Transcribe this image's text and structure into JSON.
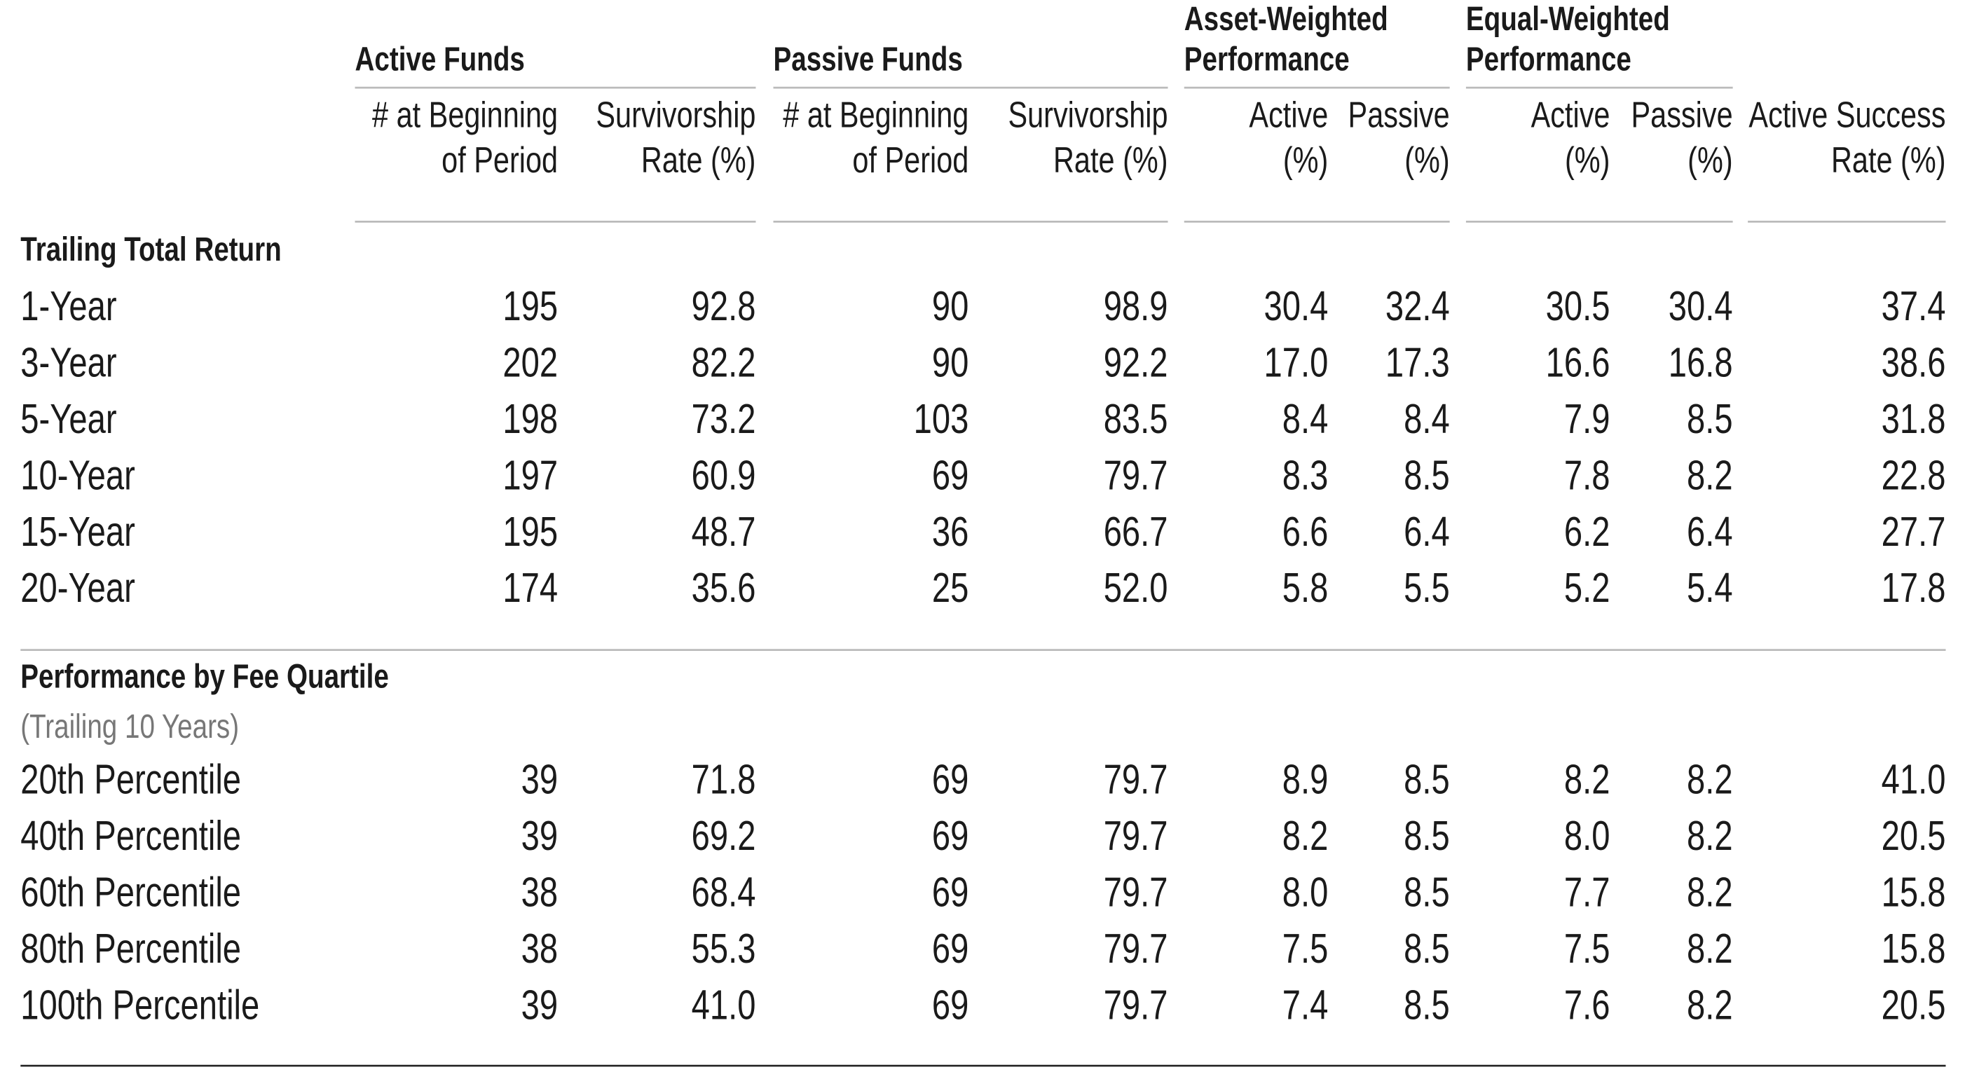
{
  "header": {
    "groups": [
      [
        "Active Funds"
      ],
      [
        "Passive Funds"
      ],
      [
        "Asset-Weighted",
        "Performance"
      ],
      [
        "Equal-Weighted",
        "Performance"
      ]
    ],
    "columns": [
      [
        "# at Beginning",
        "of Period"
      ],
      [
        "Survivorship",
        "Rate (%)"
      ],
      [
        "# at Beginning",
        "of Period"
      ],
      [
        "Survivorship",
        "Rate (%)"
      ],
      [
        "Active",
        "(%)"
      ],
      [
        "Passive",
        "(%)"
      ],
      [
        "Active",
        "(%)"
      ],
      [
        "Passive",
        "(%)"
      ],
      [
        "Active Success",
        "Rate (%)"
      ]
    ]
  },
  "sections": [
    {
      "title": "Trailing Total Return",
      "rows": [
        {
          "label": "1-Year",
          "cells": [
            "195",
            "92.8",
            "90",
            "98.9",
            "30.4",
            "32.4",
            "30.5",
            "30.4",
            "37.4"
          ]
        },
        {
          "label": "3-Year",
          "cells": [
            "202",
            "82.2",
            "90",
            "92.2",
            "17.0",
            "17.3",
            "16.6",
            "16.8",
            "38.6"
          ]
        },
        {
          "label": "5-Year",
          "cells": [
            "198",
            "73.2",
            "103",
            "83.5",
            "8.4",
            "8.4",
            "7.9",
            "8.5",
            "31.8"
          ]
        },
        {
          "label": "10-Year",
          "cells": [
            "197",
            "60.9",
            "69",
            "79.7",
            "8.3",
            "8.5",
            "7.8",
            "8.2",
            "22.8"
          ]
        },
        {
          "label": "15-Year",
          "cells": [
            "195",
            "48.7",
            "36",
            "66.7",
            "6.6",
            "6.4",
            "6.2",
            "6.4",
            "27.7"
          ]
        },
        {
          "label": "20-Year",
          "cells": [
            "174",
            "35.6",
            "25",
            "52.0",
            "5.8",
            "5.5",
            "5.2",
            "5.4",
            "17.8"
          ]
        }
      ]
    },
    {
      "title": "Performance by Fee Quartile",
      "subtitle": "(Trailing 10 Years)",
      "rows": [
        {
          "label": "20th Percentile",
          "cells": [
            "39",
            "71.8",
            "69",
            "79.7",
            "8.9",
            "8.5",
            "8.2",
            "8.2",
            "41.0"
          ]
        },
        {
          "label": "40th Percentile",
          "cells": [
            "39",
            "69.2",
            "69",
            "79.7",
            "8.2",
            "8.5",
            "8.0",
            "8.2",
            "20.5"
          ]
        },
        {
          "label": "60th Percentile",
          "cells": [
            "38",
            "68.4",
            "69",
            "79.7",
            "8.0",
            "8.5",
            "7.7",
            "8.2",
            "15.8"
          ]
        },
        {
          "label": "80th Percentile",
          "cells": [
            "38",
            "55.3",
            "69",
            "79.7",
            "7.5",
            "8.5",
            "7.5",
            "8.2",
            "15.8"
          ]
        },
        {
          "label": "100th Percentile",
          "cells": [
            "39",
            "41.0",
            "69",
            "79.7",
            "7.4",
            "8.5",
            "7.6",
            "8.2",
            "20.5"
          ]
        }
      ]
    }
  ]
}
